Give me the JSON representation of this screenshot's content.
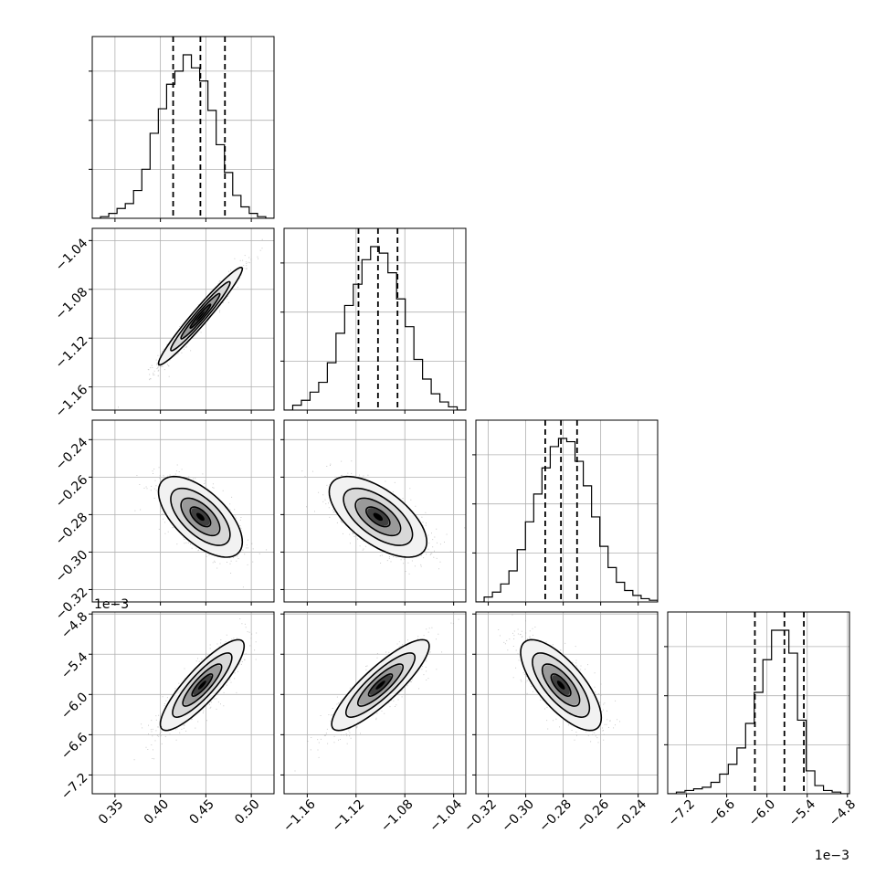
{
  "chart_data": {
    "type": "corner",
    "parameters": 4,
    "grid": true,
    "ticks": {
      "p0": {
        "values": [
          0.35,
          0.4,
          0.45,
          0.5
        ],
        "labels": [
          "0.35",
          "0.40",
          "0.45",
          "0.50"
        ],
        "lim": [
          0.325,
          0.525
        ]
      },
      "p1": {
        "values": [
          -1.16,
          -1.12,
          -1.08,
          -1.04
        ],
        "labels": [
          "−1.16",
          "−1.12",
          "−1.08",
          "−1.04"
        ],
        "lim": [
          -1.179,
          -1.03
        ]
      },
      "p2": {
        "values": [
          -0.32,
          -0.3,
          -0.28,
          -0.26,
          -0.24
        ],
        "labels": [
          "−0.32",
          "−0.30",
          "−0.28",
          "−0.26",
          "−0.24"
        ],
        "lim": [
          -0.3266,
          -0.2296
        ]
      },
      "p3": {
        "values": [
          -7.2,
          -6.6,
          -6.0,
          -5.4,
          -4.8
        ],
        "labels": [
          "−7.2",
          "−6.6",
          "−6.0",
          "−5.4",
          "−4.8"
        ],
        "lim": [
          -7.48,
          -4.77
        ]
      }
    },
    "offset_text": {
      "p3_x": "1e−3",
      "p3_y": "1e−3"
    },
    "quantiles": {
      "p0": [
        0.414,
        0.444,
        0.471
      ],
      "p1": [
        -1.118,
        -1.102,
        -1.086
      ],
      "p2": [
        -0.2896,
        -0.2812,
        -0.2726
      ],
      "p3": [
        -6.18,
        -5.74,
        -5.45
      ]
    },
    "histograms": {
      "p0": {
        "range": [
          0.325,
          0.525
        ],
        "counts": [
          0,
          1,
          3,
          6,
          9,
          17,
          30,
          52,
          67,
          82,
          90,
          100,
          92,
          84,
          66,
          45,
          28,
          14,
          7,
          3,
          1,
          0
        ]
      },
      "p1": {
        "range": [
          -1.179,
          -1.03
        ],
        "counts": [
          0,
          3,
          6,
          11,
          17,
          29,
          47,
          64,
          77,
          92,
          100,
          96,
          84,
          68,
          51,
          31,
          19,
          10,
          5,
          2,
          0
        ]
      },
      "p2": {
        "range": [
          -0.3266,
          -0.2296
        ],
        "counts": [
          0,
          3,
          6,
          11,
          19,
          32,
          49,
          66,
          82,
          95,
          100,
          98,
          86,
          71,
          52,
          34,
          21,
          12,
          7,
          4,
          2,
          1
        ]
      },
      "p3": {
        "range": [
          -7.48,
          -4.77
        ],
        "counts": [
          0,
          1,
          2,
          3,
          4,
          7,
          12,
          18,
          28,
          43,
          62,
          82,
          100,
          100,
          86,
          45,
          14,
          5,
          2,
          1,
          0
        ]
      }
    },
    "pairs": [
      {
        "x": "p0",
        "y": "p1",
        "mean": [
          0.444,
          -1.102
        ],
        "sd": [
          0.0225,
          0.0195
        ],
        "rho": 0.97
      },
      {
        "x": "p0",
        "y": "p2",
        "mean": [
          0.444,
          -0.2812
        ],
        "sd": [
          0.0225,
          0.0105
        ],
        "rho": -0.62
      },
      {
        "x": "p1",
        "y": "p2",
        "mean": [
          -1.102,
          -0.2812
        ],
        "sd": [
          0.0195,
          0.0105
        ],
        "rho": -0.62
      },
      {
        "x": "p0",
        "y": "p3",
        "mean": [
          0.446,
          -5.86
        ],
        "sd": [
          0.0225,
          0.33
        ],
        "rho": 0.86
      },
      {
        "x": "p1",
        "y": "p3",
        "mean": [
          -1.1,
          -5.86
        ],
        "sd": [
          0.0195,
          0.33
        ],
        "rho": 0.86
      },
      {
        "x": "p2",
        "y": "p3",
        "mean": [
          -0.2812,
          -5.86
        ],
        "sd": [
          0.0105,
          0.33
        ],
        "rho": -0.72
      }
    ],
    "colors": {
      "line": "#000000",
      "grid": "#b0b0b0",
      "points": "#a0a0a0",
      "density": "#202020"
    }
  }
}
